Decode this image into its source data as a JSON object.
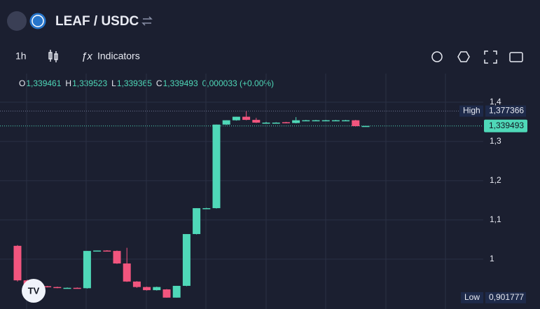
{
  "header": {
    "title": "LEAF / USDC",
    "interval": "1h",
    "indicators": "Indicators"
  },
  "chart_data": {
    "type": "candlestick",
    "legend": [
      {
        "key": "O",
        "label": "1,339461"
      },
      {
        "key": "H",
        "label": "1,339523"
      },
      {
        "key": "L",
        "label": "1,339365"
      },
      {
        "key": "C",
        "label": "1,339493"
      }
    ],
    "change": "0,000033 (+0.00%)",
    "series": {
      "open": [
        1.034,
        0.946,
        0.929,
        0.931,
        0.929,
        0.927,
        0.927,
        0.926,
        1.021,
        1.022,
        1.021,
        0.989,
        0.943,
        0.929,
        0.921,
        0.923,
        0.902,
        0.932,
        1.064,
        1.13,
        1.13,
        1.343,
        1.354,
        1.363,
        1.355,
        1.348,
        1.348,
        1.349,
        1.347,
        1.354,
        1.354,
        1.354,
        1.354,
        1.354,
        1.354,
        1.339461
      ],
      "high": [
        1.036,
        0.948,
        0.932,
        0.932,
        0.93,
        0.928,
        0.928,
        1.021,
        1.022,
        1.023,
        1.022,
        1.029,
        0.944,
        0.93,
        0.93,
        0.924,
        0.932,
        1.064,
        1.13,
        1.131,
        1.343,
        1.354,
        1.363,
        1.377366,
        1.36,
        1.35,
        1.349,
        1.35,
        1.362,
        1.355,
        1.355,
        1.355,
        1.355,
        1.355,
        1.355,
        1.339523
      ],
      "low": [
        0.943,
        0.923,
        0.927,
        0.928,
        0.926,
        0.926,
        0.925,
        0.925,
        1.02,
        1.02,
        0.988,
        0.942,
        0.927,
        0.92,
        0.92,
        0.901777,
        0.902,
        0.931,
        1.063,
        1.129,
        1.129,
        1.342,
        1.353,
        1.354,
        1.347,
        1.345,
        1.347,
        1.346,
        1.346,
        1.353,
        1.353,
        1.353,
        1.353,
        1.353,
        1.338,
        1.339365
      ],
      "close": [
        0.946,
        0.929,
        0.931,
        0.929,
        0.927,
        0.927,
        0.926,
        1.021,
        1.022,
        1.021,
        0.989,
        0.943,
        0.929,
        0.921,
        0.929,
        0.902,
        0.932,
        1.064,
        1.13,
        1.13,
        1.343,
        1.354,
        1.363,
        1.355,
        1.348,
        1.348,
        1.348,
        1.347,
        1.354,
        1.354,
        1.354,
        1.354,
        1.354,
        1.354,
        1.339,
        1.339493
      ]
    },
    "up_color": "#4fd8b8",
    "down_color": "#f2557e",
    "ylim": [
      0.873,
      1.473
    ],
    "yticks": [
      {
        "value": 1,
        "label": "1"
      },
      {
        "value": 1.1,
        "label": "1,1"
      },
      {
        "value": 1.2,
        "label": "1,2"
      },
      {
        "value": 1.3,
        "label": "1,3"
      },
      {
        "value": 1.4,
        "label": "1,4"
      }
    ],
    "high_marker": {
      "name": "High",
      "value": 1.377366,
      "label": "1,377366"
    },
    "low_marker": {
      "name": "Low",
      "value": 0.901777,
      "label": "0,901777"
    },
    "last_price": {
      "value": 1.339493,
      "label": "1,339493"
    },
    "grid": true
  }
}
